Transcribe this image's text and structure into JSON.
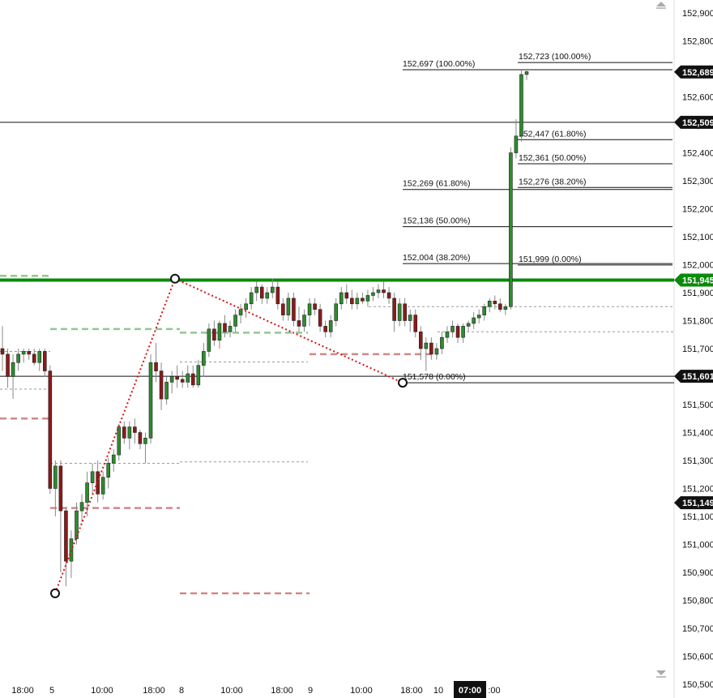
{
  "chart_data": {
    "type": "candlestick",
    "ylim": [
      150500,
      152950
    ],
    "y_ticks": [
      "152,900",
      "152,800",
      "152,700",
      "152,600",
      "152,500",
      "152,400",
      "152,300",
      "152,200",
      "152,100",
      "152,000",
      "151,900",
      "151,800",
      "151,700",
      "151,600",
      "151,500",
      "151,400",
      "151,300",
      "151,200",
      "151,100",
      "151,000",
      "150,900",
      "150,800",
      "150,700",
      "150,600",
      "150,500"
    ],
    "x_ticks": [
      "18:00",
      "5",
      "10:00",
      "18:00",
      "8",
      "10:00",
      "18:00",
      "9",
      "10:00",
      "18:00",
      "10",
      "07:00",
      ":00"
    ],
    "x_tick_highlight": "07:00",
    "price_tags": [
      {
        "label": "152,689",
        "value": 152689,
        "color": "#111111"
      },
      {
        "label": "152,509",
        "value": 152509,
        "color": "#111111"
      },
      {
        "label": "151,945",
        "value": 151945,
        "color": "#0a8a0a"
      },
      {
        "label": "151,601",
        "value": 151601,
        "color": "#111111"
      },
      {
        "label": "151,149",
        "value": 151149,
        "color": "#111111"
      }
    ],
    "horizontal_lines": [
      {
        "value": 152509,
        "style": "solid",
        "color": "#111111"
      },
      {
        "value": 151601,
        "style": "solid",
        "color": "#111111"
      },
      {
        "value": 151945,
        "style": "thick",
        "color": "#0a8a0a"
      }
    ],
    "fib_levels_left": [
      {
        "label": "152,697 (100.00%)",
        "value": 152697
      },
      {
        "label": "152,269 (61.80%)",
        "value": 152269
      },
      {
        "label": "152,136 (50.00%)",
        "value": 152136
      },
      {
        "label": "152,004 (38.20%)",
        "value": 152004
      },
      {
        "label": "151,578 (0.00%)",
        "value": 151578
      }
    ],
    "fib_levels_right": [
      {
        "label": "152,723 (100.00%)",
        "value": 152723
      },
      {
        "label": "152,447 (61.80%)",
        "value": 152447
      },
      {
        "label": "152,361 (50.00%)",
        "value": 152361
      },
      {
        "label": "152,276 (38.20%)",
        "value": 152276
      },
      {
        "label": "151,999 (0.00%)",
        "value": 151999
      }
    ],
    "swing_points": [
      {
        "name": "low",
        "value": 150825
      },
      {
        "name": "high",
        "value": 151950
      },
      {
        "name": "pullback-low",
        "value": 151578
      }
    ],
    "candles": [
      [
        151700,
        151780,
        151620,
        151680
      ],
      [
        151680,
        151700,
        151560,
        151600
      ],
      [
        151600,
        151680,
        151520,
        151650
      ],
      [
        151650,
        151700,
        151620,
        151680
      ],
      [
        151680,
        151700,
        151650,
        151690
      ],
      [
        151690,
        151700,
        151660,
        151680
      ],
      [
        151680,
        151700,
        151640,
        151650
      ],
      [
        151650,
        151700,
        151620,
        151690
      ],
      [
        151690,
        151700,
        151600,
        151620
      ],
      [
        151620,
        151640,
        151180,
        151200
      ],
      [
        151200,
        151300,
        151100,
        151280
      ],
      [
        151280,
        151300,
        150900,
        151120
      ],
      [
        151120,
        151130,
        150850,
        150940
      ],
      [
        150940,
        151050,
        150880,
        151020
      ],
      [
        151020,
        151150,
        151000,
        151120
      ],
      [
        151120,
        151180,
        151080,
        151150
      ],
      [
        151150,
        151260,
        151100,
        151220
      ],
      [
        151220,
        151290,
        151180,
        151260
      ],
      [
        151260,
        151300,
        151150,
        151180
      ],
      [
        151180,
        151260,
        151160,
        151240
      ],
      [
        151240,
        151310,
        151200,
        151290
      ],
      [
        151290,
        151340,
        151260,
        151320
      ],
      [
        151320,
        151430,
        151300,
        151420
      ],
      [
        151420,
        151440,
        151360,
        151380
      ],
      [
        151380,
        151440,
        151340,
        151420
      ],
      [
        151420,
        151450,
        151360,
        151400
      ],
      [
        151400,
        151410,
        151340,
        151360
      ],
      [
        151360,
        151400,
        151290,
        151380
      ],
      [
        151380,
        151680,
        151360,
        151650
      ],
      [
        151650,
        151720,
        151580,
        151620
      ],
      [
        151620,
        151650,
        151480,
        151520
      ],
      [
        151520,
        151600,
        151500,
        151580
      ],
      [
        151580,
        151620,
        151540,
        151600
      ],
      [
        151600,
        151640,
        151560,
        151590
      ],
      [
        151590,
        151620,
        151560,
        151580
      ],
      [
        151580,
        151640,
        151560,
        151610
      ],
      [
        151610,
        151640,
        151560,
        151570
      ],
      [
        151570,
        151660,
        151560,
        151640
      ],
      [
        151640,
        151720,
        151600,
        151690
      ],
      [
        151690,
        151790,
        151670,
        151770
      ],
      [
        151770,
        151800,
        151710,
        151730
      ],
      [
        151730,
        151800,
        151700,
        151790
      ],
      [
        151790,
        151820,
        151740,
        151760
      ],
      [
        151760,
        151800,
        151740,
        151780
      ],
      [
        151780,
        151840,
        151760,
        151820
      ],
      [
        151820,
        151860,
        151790,
        151840
      ],
      [
        151840,
        151880,
        151810,
        151860
      ],
      [
        151860,
        151920,
        151840,
        151900
      ],
      [
        151900,
        151940,
        151870,
        151920
      ],
      [
        151920,
        151930,
        151860,
        151880
      ],
      [
        151880,
        151920,
        151860,
        151900
      ],
      [
        151900,
        151950,
        151880,
        151920
      ],
      [
        151920,
        151940,
        151840,
        151860
      ],
      [
        151860,
        151880,
        151800,
        151820
      ],
      [
        151820,
        151900,
        151800,
        151880
      ],
      [
        151880,
        151900,
        151780,
        151800
      ],
      [
        151800,
        151850,
        151760,
        151780
      ],
      [
        151780,
        151840,
        151760,
        151820
      ],
      [
        151820,
        151880,
        151780,
        151860
      ],
      [
        151860,
        151880,
        151820,
        151840
      ],
      [
        151840,
        151860,
        151760,
        151780
      ],
      [
        151780,
        151800,
        151740,
        151760
      ],
      [
        151760,
        151820,
        151740,
        151800
      ],
      [
        151800,
        151880,
        151780,
        151860
      ],
      [
        151860,
        151920,
        151840,
        151900
      ],
      [
        151900,
        151930,
        151860,
        151880
      ],
      [
        151880,
        151910,
        151840,
        151860
      ],
      [
        151860,
        151900,
        151840,
        151880
      ],
      [
        151880,
        151900,
        151860,
        151870
      ],
      [
        151870,
        151910,
        151850,
        151890
      ],
      [
        151890,
        151920,
        151870,
        151900
      ],
      [
        151900,
        151930,
        151880,
        151910
      ],
      [
        151910,
        151940,
        151880,
        151900
      ],
      [
        151900,
        151920,
        151860,
        151880
      ],
      [
        151880,
        151900,
        151760,
        151800
      ],
      [
        151800,
        151880,
        151780,
        151860
      ],
      [
        151860,
        151880,
        151780,
        151800
      ],
      [
        151800,
        151840,
        151760,
        151820
      ],
      [
        151820,
        151840,
        151740,
        151760
      ],
      [
        151760,
        151780,
        151660,
        151700
      ],
      [
        151700,
        151740,
        151620,
        151720
      ],
      [
        151720,
        151740,
        151660,
        151680
      ],
      [
        151680,
        151720,
        151660,
        151700
      ],
      [
        151700,
        151760,
        151680,
        151740
      ],
      [
        151740,
        151780,
        151720,
        151760
      ],
      [
        151760,
        151800,
        151740,
        151780
      ],
      [
        151780,
        151790,
        151720,
        151740
      ],
      [
        151740,
        151790,
        151720,
        151780
      ],
      [
        151780,
        151800,
        151760,
        151790
      ],
      [
        151790,
        151830,
        151770,
        151810
      ],
      [
        151810,
        151840,
        151790,
        151820
      ],
      [
        151820,
        151860,
        151800,
        151850
      ],
      [
        151850,
        151880,
        151830,
        151870
      ],
      [
        151870,
        151890,
        151840,
        151860
      ],
      [
        151860,
        151880,
        151830,
        151840
      ],
      [
        151840,
        151860,
        151820,
        151850
      ],
      [
        151850,
        152420,
        151840,
        152400
      ],
      [
        152400,
        152520,
        152380,
        152460
      ],
      [
        152460,
        152700,
        152440,
        152680
      ],
      [
        152680,
        152700,
        152660,
        152690
      ]
    ]
  }
}
